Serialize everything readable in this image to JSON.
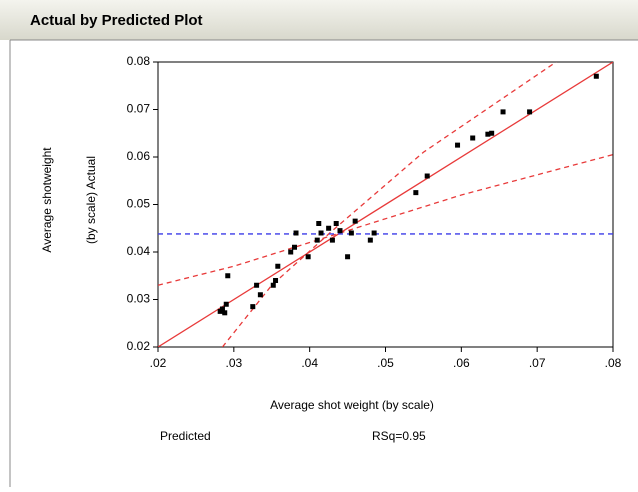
{
  "chart_data": {
    "type": "scatter",
    "title": "Actual by Predicted Plot",
    "x_label": "Average shot weight (by scale)",
    "y_label": [
      "Average shotweight",
      "(by scale) Actual"
    ],
    "footer": [
      "Predicted",
      "RSq=0.95"
    ],
    "color": "#000000",
    "x": [
      0.0282,
      0.0285,
      0.0288,
      0.029,
      0.0292,
      0.0325,
      0.033,
      0.0335,
      0.0352,
      0.0355,
      0.0358,
      0.0375,
      0.038,
      0.0382,
      0.0398,
      0.041,
      0.0412,
      0.0415,
      0.0425,
      0.043,
      0.0435,
      0.044,
      0.045,
      0.0455,
      0.046,
      0.048,
      0.0485,
      0.054,
      0.0555,
      0.0595,
      0.0615,
      0.0635,
      0.064,
      0.0655,
      0.069,
      0.0778
    ],
    "y": [
      0.0275,
      0.028,
      0.0272,
      0.029,
      0.035,
      0.0285,
      0.033,
      0.031,
      0.033,
      0.034,
      0.037,
      0.04,
      0.041,
      0.044,
      0.039,
      0.0425,
      0.046,
      0.044,
      0.045,
      0.0425,
      0.046,
      0.0445,
      0.039,
      0.044,
      0.0465,
      0.0425,
      0.044,
      0.0525,
      0.056,
      0.0625,
      0.064,
      0.0648,
      0.065,
      0.0695,
      0.0695,
      0.077
    ],
    "lines": [
      {
        "x": [
          0.02,
          0.08
        ],
        "values": [
          0.02,
          0.08
        ],
        "color": "#e83a3a",
        "dashed": false
      },
      {
        "x": [
          0.0285,
          0.035,
          0.043,
          0.055,
          0.0725
        ],
        "values": [
          0.02,
          0.033,
          0.0445,
          0.061,
          0.08
        ],
        "color": "#e83a3a",
        "dashed": true
      },
      {
        "x": [
          0.02,
          0.03,
          0.043,
          0.06,
          0.08
        ],
        "values": [
          0.033,
          0.037,
          0.0435,
          0.052,
          0.0605
        ],
        "color": "#e83a3a",
        "dashed": true
      },
      {
        "x": [
          0.02,
          0.08
        ],
        "values": [
          0.0438,
          0.0438
        ],
        "color": "#3a3ae8",
        "dashed": true
      }
    ],
    "xlim": [
      0.02,
      0.08
    ],
    "ylim": [
      0.02,
      0.08
    ],
    "xticks": [
      {
        "value": 0.02,
        "label": ".02"
      },
      {
        "value": 0.03,
        "label": ".03"
      },
      {
        "value": 0.04,
        "label": ".04"
      },
      {
        "value": 0.05,
        "label": ".05"
      },
      {
        "value": 0.06,
        "label": ".06"
      },
      {
        "value": 0.07,
        "label": ".07"
      },
      {
        "value": 0.08,
        "label": ".08"
      }
    ],
    "yticks": [
      0.02,
      0.03,
      0.04,
      0.05,
      0.06,
      0.07,
      0.08
    ]
  }
}
